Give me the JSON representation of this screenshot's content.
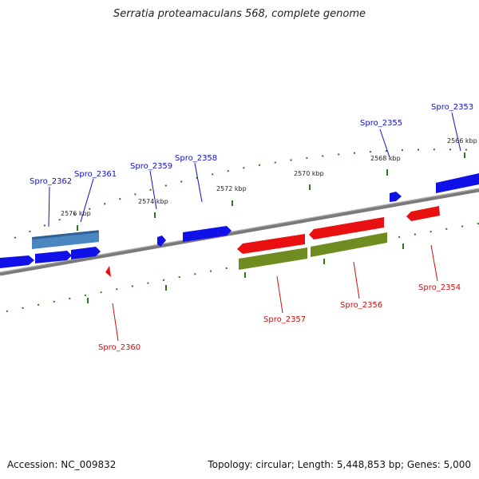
{
  "title": "Serratia proteamaculans 568, complete genome",
  "footer": {
    "accession": "Accession: NC_009832",
    "summary": "Topology: circular; Length: 5,448,853 bp; Genes: 5,000"
  },
  "colors": {
    "forward_gene": "#1010e8",
    "forward_gene_alt": "#4a86c0",
    "reverse_gene": "#e81010",
    "cds_track": "#6f8c20",
    "backbone": "#7a7a7a",
    "tick": "#2a7a1a",
    "forward_label": "#1010cc",
    "reverse_label": "#cc1010"
  },
  "scale_labels": [
    "2566 kbp",
    "2568 kbp",
    "2570 kbp",
    "2572 kbp",
    "2574 kbp",
    "2576 kbp"
  ],
  "gene_labels": {
    "forward": [
      "Spro_2353",
      "Spro_2355",
      "Spro_2358",
      "Spro_2359",
      "Spro_2361",
      "Spro_2362"
    ],
    "reverse": [
      "Spro_2354",
      "Spro_2356",
      "Spro_2357",
      "Spro_2360"
    ]
  }
}
